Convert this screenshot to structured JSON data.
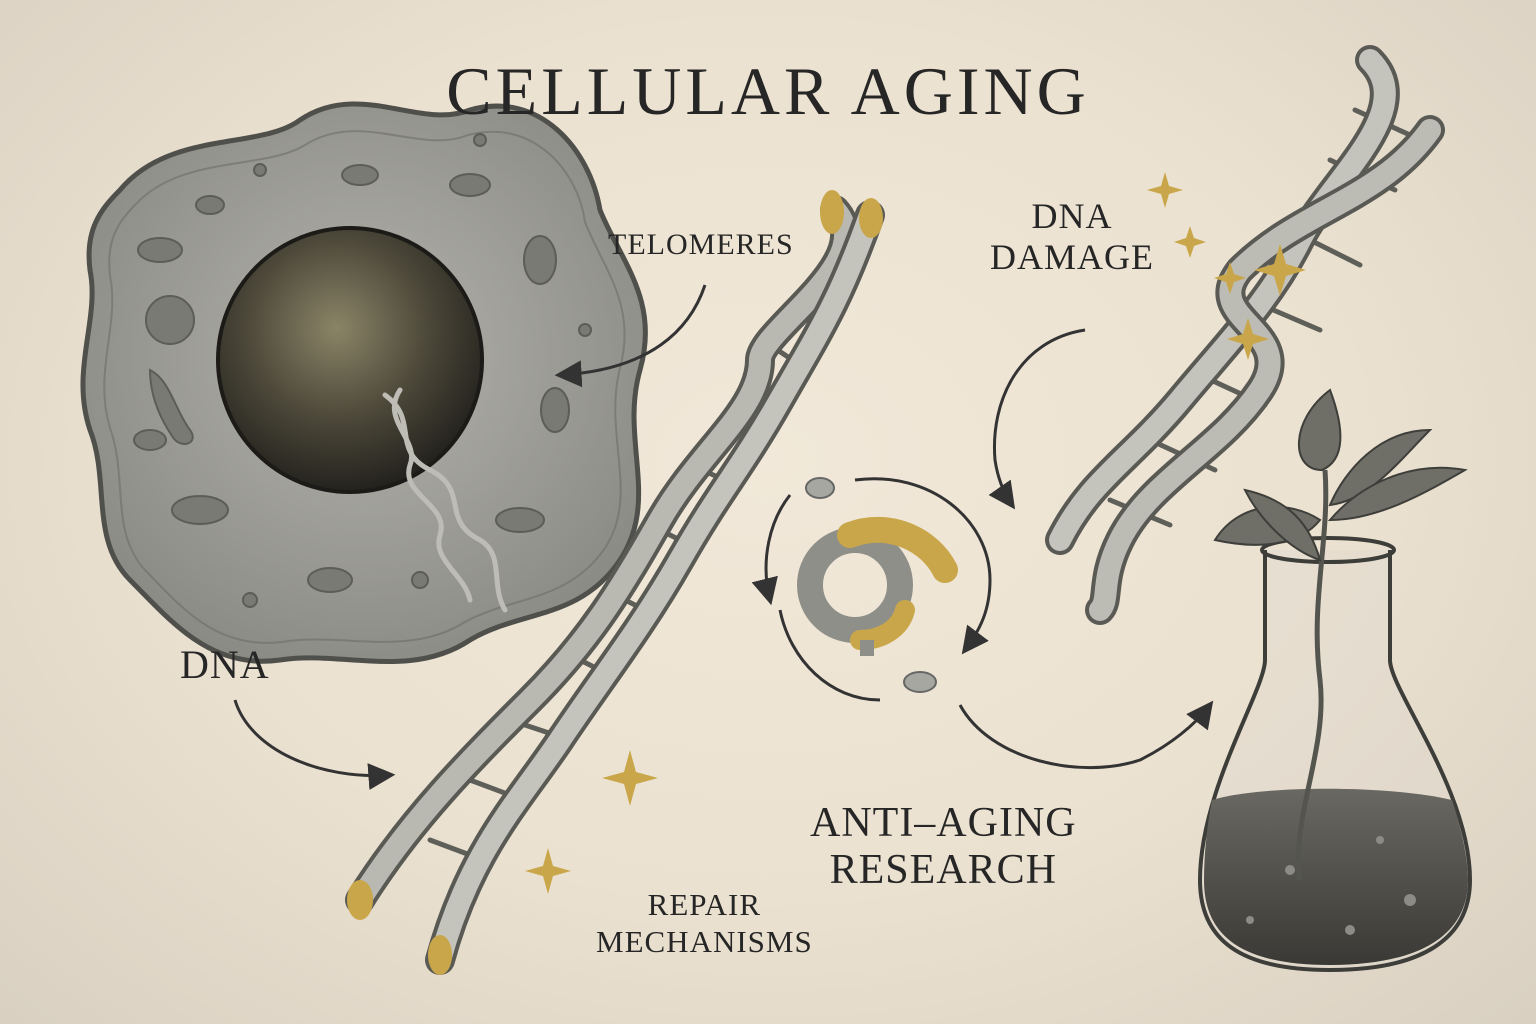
{
  "title": "CELLULAR AGING",
  "labels": {
    "telomeres": "TELOMERES",
    "dna_damage_1": "DNA",
    "dna_damage_2": "DAMAGE",
    "dna": "DNA",
    "anti_aging_1": "ANTI–AGING",
    "anti_aging_2": "RESEARCH",
    "repair_1": "REPAIR",
    "repair_2": "MECHANISMS"
  },
  "colors": {
    "paper": "#ede3d3",
    "ink": "#262626",
    "gold": "#c9a649",
    "cell_gray": "#8e8e8b",
    "nucleus": "#3c3a33"
  },
  "icons": [
    "cell-icon",
    "nucleus-icon",
    "dna-helix-icon",
    "sparkle-icon",
    "repair-cycle-icon",
    "plant-flask-icon"
  ]
}
